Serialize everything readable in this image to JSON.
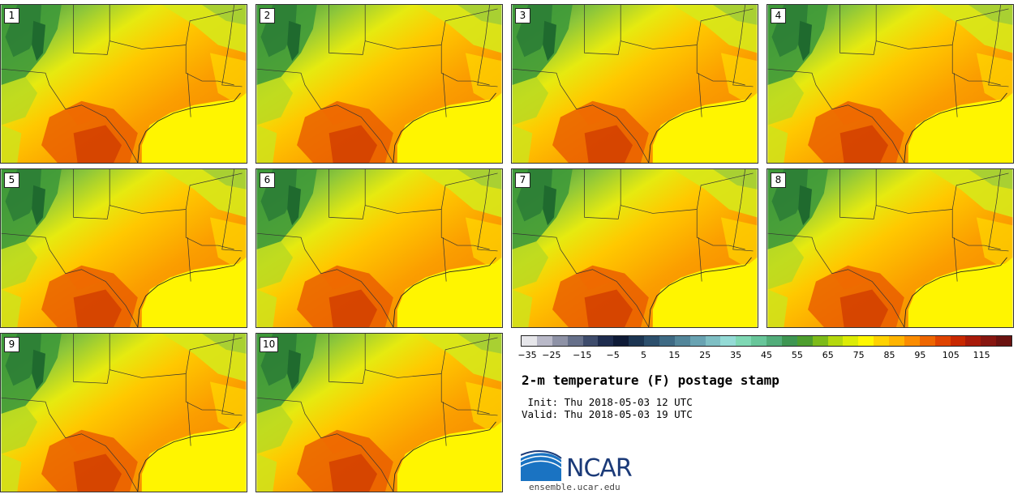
{
  "panels": [
    {
      "label": "1"
    },
    {
      "label": "2"
    },
    {
      "label": "3"
    },
    {
      "label": "4"
    },
    {
      "label": "5"
    },
    {
      "label": "6"
    },
    {
      "label": "7"
    },
    {
      "label": "8"
    },
    {
      "label": "9"
    },
    {
      "label": "10"
    }
  ],
  "colorbar": {
    "colors": [
      "#e6e6ea",
      "#b9b9c8",
      "#8e92a6",
      "#66708a",
      "#3e4c6c",
      "#1e2c4e",
      "#0e1a36",
      "#1c3552",
      "#2c4f6c",
      "#3e6a84",
      "#53869a",
      "#69a3b2",
      "#7fbfc4",
      "#94dbd6",
      "#7fd8b4",
      "#68c69a",
      "#52ad7a",
      "#3e9652",
      "#4d9e2e",
      "#7dbb1a",
      "#b4d80e",
      "#dcec06",
      "#fff700",
      "#ffd200",
      "#ffb400",
      "#fb8c00",
      "#ee6600",
      "#df4300",
      "#c82800",
      "#a81a0a",
      "#871610",
      "#6a1210"
    ],
    "ticks": [
      "−35",
      "−25",
      "−15",
      "−5",
      "5",
      "15",
      "25",
      "35",
      "45",
      "55",
      "65",
      "75",
      "85",
      "95",
      "105",
      "115"
    ]
  },
  "title": "2-m temperature (F) postage stamp",
  "init": " Init: Thu 2018-05-03 12 UTC",
  "valid": "Valid: Thu 2018-05-03 19 UTC",
  "logo": {
    "text": "NCAR",
    "url": "ensemble.ucar.edu",
    "icon": "ncar-swoosh-icon"
  }
}
